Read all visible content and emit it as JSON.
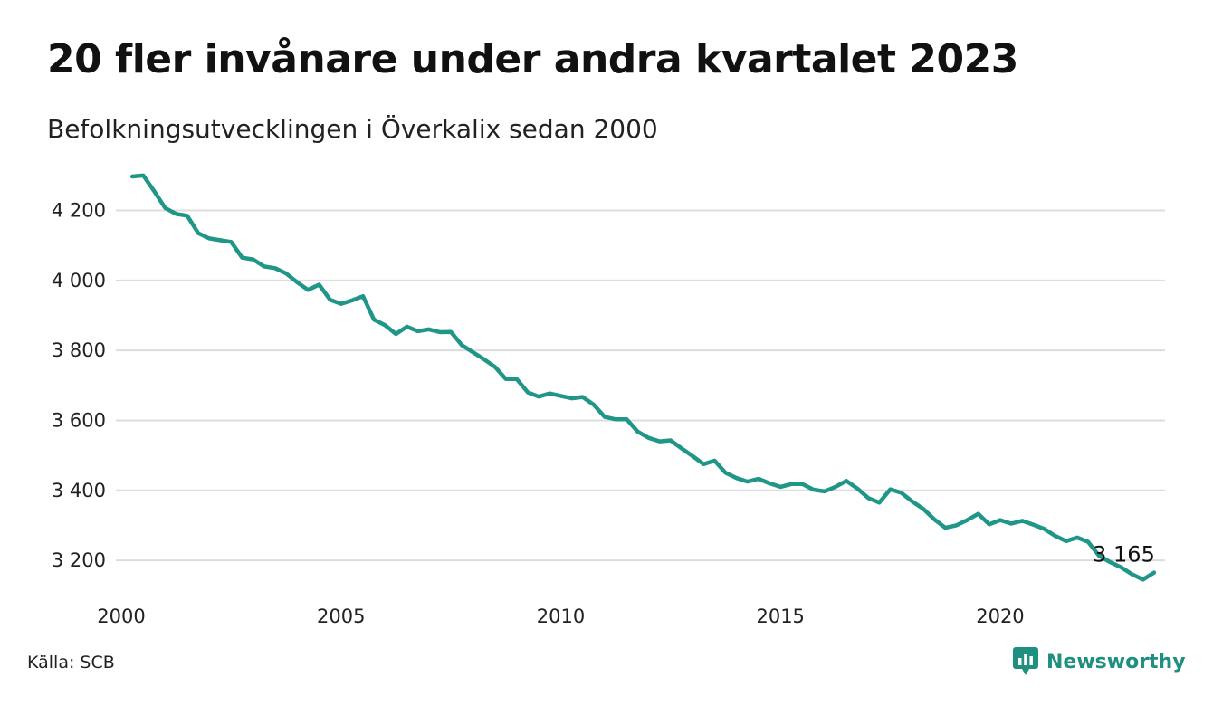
{
  "title": "20 fler invånare under andra kvartalet 2023",
  "subtitle": "Befolkningsutvecklingen i Överkalix sedan 2000",
  "source": "Källa: SCB",
  "brand": {
    "name": "Newsworthy",
    "icon": "chart-bubble-icon",
    "color": "#1f8f80"
  },
  "chart_data": {
    "type": "line",
    "title": "20 fler invånare under andra kvartalet 2023",
    "subtitle": "Befolkningsutvecklingen i Överkalix sedan 2000",
    "xlabel": "",
    "ylabel": "",
    "xlim": [
      2000,
      2023.75
    ],
    "ylim": [
      3120,
      4310
    ],
    "grid": true,
    "line_color": "#1f9688",
    "y_ticks": [
      {
        "value": 3200,
        "label": "3 200"
      },
      {
        "value": 3400,
        "label": "3 400"
      },
      {
        "value": 3600,
        "label": "3 600"
      },
      {
        "value": 3800,
        "label": "3 800"
      },
      {
        "value": 4000,
        "label": "4 000"
      },
      {
        "value": 4200,
        "label": "4 200"
      }
    ],
    "x_ticks": [
      {
        "value": 2000,
        "label": "2000"
      },
      {
        "value": 2005,
        "label": "2005"
      },
      {
        "value": 2010,
        "label": "2010"
      },
      {
        "value": 2015,
        "label": "2015"
      },
      {
        "value": 2020,
        "label": "2020"
      }
    ],
    "end_label": "3 165",
    "series": [
      {
        "x": [
          2000.25,
          2000.5,
          2000.75,
          2001.0,
          2001.25,
          2001.5,
          2001.75,
          2002.0,
          2002.25,
          2002.5,
          2002.75,
          2003.0,
          2003.25,
          2003.5,
          2003.75,
          2004.0,
          2004.25,
          2004.5,
          2004.75,
          2005.0,
          2005.25,
          2005.5,
          2005.75,
          2006.0,
          2006.25,
          2006.5,
          2006.75,
          2007.0,
          2007.25,
          2007.5,
          2007.75,
          2008.0,
          2008.25,
          2008.5,
          2008.75,
          2009.0,
          2009.25,
          2009.5,
          2009.75,
          2010.0,
          2010.25,
          2010.5,
          2010.75,
          2011.0,
          2011.25,
          2011.5,
          2011.75,
          2012.0,
          2012.25,
          2012.5,
          2012.75,
          2013.0,
          2013.25,
          2013.5,
          2013.75,
          2014.0,
          2014.25,
          2014.5,
          2014.75,
          2015.0,
          2015.25,
          2015.5,
          2015.75,
          2016.0,
          2016.25,
          2016.5,
          2016.75,
          2017.0,
          2017.25,
          2017.5,
          2017.75,
          2018.0,
          2018.25,
          2018.5,
          2018.75,
          2019.0,
          2019.25,
          2019.5,
          2019.75,
          2020.0,
          2020.25,
          2020.5,
          2020.75,
          2021.0,
          2021.25,
          2021.5,
          2021.75,
          2022.0,
          2022.25,
          2022.5,
          2022.75,
          2023.0,
          2023.25,
          2023.5
        ],
        "values": [
          4297,
          4300,
          4255,
          4207,
          4190,
          4185,
          4135,
          4120,
          4115,
          4110,
          4065,
          4060,
          4040,
          4035,
          4020,
          3995,
          3973,
          3988,
          3945,
          3933,
          3943,
          3955,
          3888,
          3872,
          3847,
          3868,
          3855,
          3860,
          3852,
          3853,
          3815,
          3795,
          3775,
          3753,
          3718,
          3718,
          3680,
          3668,
          3677,
          3670,
          3663,
          3667,
          3645,
          3610,
          3603,
          3603,
          3568,
          3550,
          3540,
          3543,
          3520,
          3498,
          3475,
          3485,
          3450,
          3435,
          3425,
          3433,
          3420,
          3410,
          3418,
          3418,
          3402,
          3397,
          3410,
          3427,
          3405,
          3378,
          3365,
          3403,
          3393,
          3368,
          3347,
          3317,
          3293,
          3300,
          3315,
          3333,
          3303,
          3315,
          3305,
          3313,
          3302,
          3290,
          3270,
          3255,
          3265,
          3253,
          3213,
          3195,
          3180,
          3160,
          3145,
          3165
        ]
      }
    ]
  }
}
